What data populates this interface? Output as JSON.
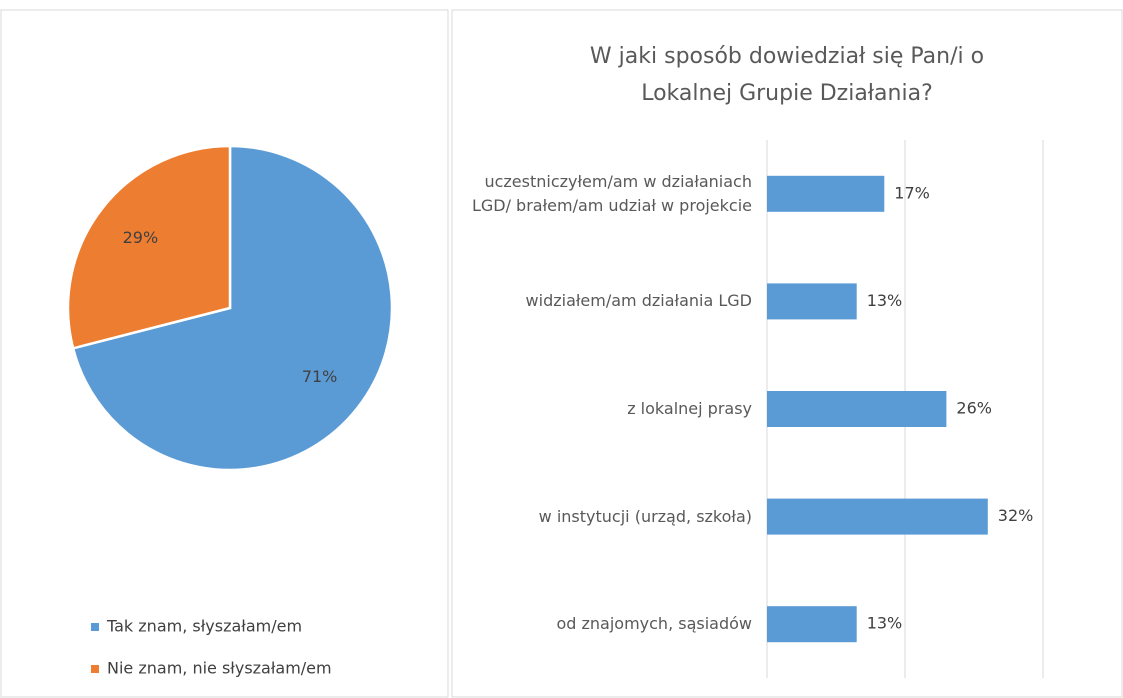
{
  "chart_data": [
    {
      "type": "pie",
      "categories": [
        "Tak znam, słyszałam/em",
        "Nie znam, nie słyszałam/em"
      ],
      "values": [
        71,
        29
      ],
      "value_labels": [
        "71%",
        "29%"
      ],
      "colors": [
        "#5b9bd5",
        "#ed7d31"
      ],
      "legend": "bottom"
    },
    {
      "type": "barh",
      "title": "W jaki sposób dowiedział się Pan/i o Lokalnej Grupie Działania?",
      "categories": [
        "uczestniczyłem/am w działaniach LGD/ brałem/am udział w projekcie",
        "widziałem/am działania LGD",
        "z lokalnej prasy",
        "w instytucji (urząd, szkoła)",
        "od znajomych, sąsiadów"
      ],
      "values": [
        17,
        13,
        26,
        32,
        13
      ],
      "value_labels": [
        "17%",
        "13%",
        "26%",
        "32%",
        "13%"
      ],
      "color": "#5b9bd5",
      "xlim": [
        0,
        40
      ],
      "xticks": [
        0,
        20,
        40
      ],
      "grid": true
    }
  ]
}
